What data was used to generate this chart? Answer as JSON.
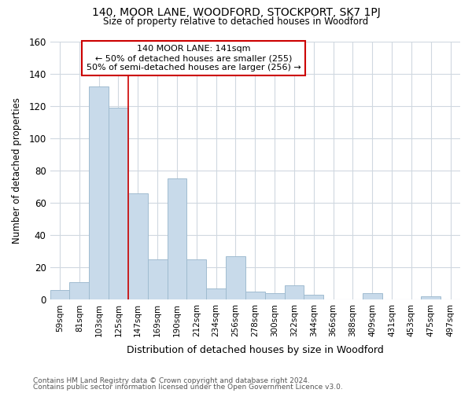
{
  "title": "140, MOOR LANE, WOODFORD, STOCKPORT, SK7 1PJ",
  "subtitle": "Size of property relative to detached houses in Woodford",
  "xlabel": "Distribution of detached houses by size in Woodford",
  "ylabel": "Number of detached properties",
  "categories": [
    "59sqm",
    "81sqm",
    "103sqm",
    "125sqm",
    "147sqm",
    "169sqm",
    "190sqm",
    "212sqm",
    "234sqm",
    "256sqm",
    "278sqm",
    "300sqm",
    "322sqm",
    "344sqm",
    "366sqm",
    "388sqm",
    "409sqm",
    "431sqm",
    "453sqm",
    "475sqm",
    "497sqm"
  ],
  "values": [
    6,
    11,
    132,
    119,
    66,
    25,
    75,
    25,
    7,
    27,
    5,
    4,
    9,
    3,
    0,
    0,
    4,
    0,
    0,
    2,
    0
  ],
  "bar_color": "#c8daea",
  "bar_edgecolor": "#a0bcd0",
  "background_color": "#ffffff",
  "grid_color": "#d0d8e0",
  "red_line_x": 3.5,
  "annotation_title": "140 MOOR LANE: 141sqm",
  "annotation_line1": "← 50% of detached houses are smaller (255)",
  "annotation_line2": "50% of semi-detached houses are larger (256) →",
  "annotation_box_color": "#ffffff",
  "annotation_box_edgecolor": "#cc0000",
  "ylim": [
    0,
    160
  ],
  "yticks": [
    0,
    20,
    40,
    60,
    80,
    100,
    120,
    140,
    160
  ],
  "footnote1": "Contains HM Land Registry data © Crown copyright and database right 2024.",
  "footnote2": "Contains public sector information licensed under the Open Government Licence v3.0."
}
